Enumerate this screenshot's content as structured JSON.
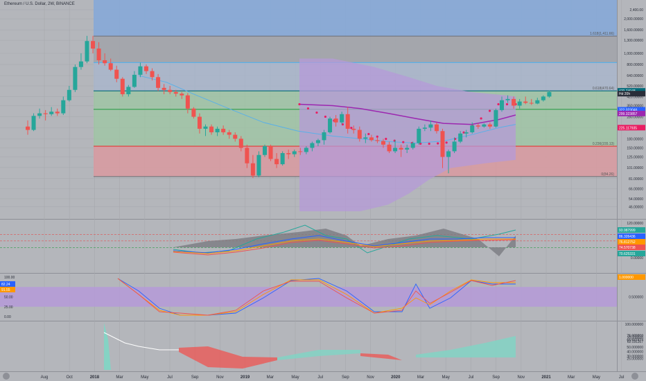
{
  "title": "Ethereum / U.S. Dollar, 2W, BINANCE",
  "colors": {
    "background": "#b4b6bb",
    "up": "#26a69a",
    "down": "#ef5350",
    "blue_zone": "#86a9d8",
    "red_zone": "#d99aa0",
    "green_zone": "#9ec7a3",
    "purple_cloud": "#b59ad8",
    "ma_purple": "#9c27b0",
    "ma_blue": "#5ab0e8",
    "dots": "#e91e63"
  },
  "chart_data": [
    {
      "type": "candlestick",
      "name": "price",
      "title": "Ethereum / U.S. Dollar, 2W, BINANCE",
      "scale": "log",
      "ylim": [
        40,
        3000
      ],
      "x_tick_labels": [
        "Aug",
        "Oct",
        "2018",
        "Mar",
        "May",
        "Jul",
        "Sep",
        "Nov",
        "2019",
        "Mar",
        "May",
        "Jul",
        "Sep",
        "Nov",
        "2020",
        "Mar",
        "May",
        "Jul",
        "Sep",
        "Nov",
        "2021",
        "Mar",
        "May",
        "Jul"
      ],
      "y_tick_labels": [
        "2,400.00",
        "2,000.00000",
        "1,600.00000",
        "1,300.00000",
        "1,000.00000",
        "800.00000",
        "640.00000",
        "520.00000",
        "420.00000",
        "350.00000",
        "280.00000",
        "225.00000",
        "180.00000",
        "150.00000",
        "125.00000",
        "101.00000",
        "81.00000",
        "66.00000",
        "54.00000",
        "46.00000"
      ],
      "candles": [
        {
          "o": 230,
          "h": 260,
          "l": 195,
          "c": 215
        },
        {
          "o": 215,
          "h": 300,
          "l": 210,
          "c": 285
        },
        {
          "o": 285,
          "h": 330,
          "l": 270,
          "c": 300
        },
        {
          "o": 300,
          "h": 320,
          "l": 260,
          "c": 295
        },
        {
          "o": 295,
          "h": 340,
          "l": 285,
          "c": 310
        },
        {
          "o": 310,
          "h": 330,
          "l": 285,
          "c": 300
        },
        {
          "o": 300,
          "h": 420,
          "l": 290,
          "c": 390
        },
        {
          "o": 390,
          "h": 520,
          "l": 380,
          "c": 480
        },
        {
          "o": 480,
          "h": 800,
          "l": 460,
          "c": 760
        },
        {
          "o": 760,
          "h": 1000,
          "l": 720,
          "c": 850
        },
        {
          "o": 850,
          "h": 1420,
          "l": 820,
          "c": 1280
        },
        {
          "o": 1280,
          "h": 1420,
          "l": 1000,
          "c": 1100
        },
        {
          "o": 1100,
          "h": 1250,
          "l": 800,
          "c": 870
        },
        {
          "o": 870,
          "h": 1000,
          "l": 780,
          "c": 820
        },
        {
          "o": 820,
          "h": 900,
          "l": 700,
          "c": 720
        },
        {
          "o": 720,
          "h": 780,
          "l": 560,
          "c": 600
        },
        {
          "o": 600,
          "h": 620,
          "l": 420,
          "c": 440
        },
        {
          "o": 440,
          "h": 530,
          "l": 420,
          "c": 510
        },
        {
          "o": 510,
          "h": 700,
          "l": 500,
          "c": 650
        },
        {
          "o": 650,
          "h": 830,
          "l": 620,
          "c": 770
        },
        {
          "o": 770,
          "h": 800,
          "l": 660,
          "c": 700
        },
        {
          "o": 700,
          "h": 740,
          "l": 580,
          "c": 620
        },
        {
          "o": 620,
          "h": 660,
          "l": 470,
          "c": 500
        },
        {
          "o": 500,
          "h": 540,
          "l": 440,
          "c": 480
        },
        {
          "o": 480,
          "h": 520,
          "l": 440,
          "c": 460
        },
        {
          "o": 460,
          "h": 480,
          "l": 420,
          "c": 445
        },
        {
          "o": 445,
          "h": 460,
          "l": 400,
          "c": 430
        },
        {
          "o": 430,
          "h": 450,
          "l": 300,
          "c": 330
        },
        {
          "o": 330,
          "h": 340,
          "l": 270,
          "c": 280
        },
        {
          "o": 280,
          "h": 300,
          "l": 200,
          "c": 220
        },
        {
          "o": 220,
          "h": 240,
          "l": 190,
          "c": 230
        },
        {
          "o": 230,
          "h": 240,
          "l": 195,
          "c": 205
        },
        {
          "o": 205,
          "h": 230,
          "l": 190,
          "c": 220
        },
        {
          "o": 220,
          "h": 235,
          "l": 195,
          "c": 205
        },
        {
          "o": 205,
          "h": 215,
          "l": 180,
          "c": 195
        },
        {
          "o": 195,
          "h": 205,
          "l": 170,
          "c": 180
        },
        {
          "o": 180,
          "h": 190,
          "l": 140,
          "c": 150
        },
        {
          "o": 150,
          "h": 160,
          "l": 100,
          "c": 110
        },
        {
          "o": 110,
          "h": 130,
          "l": 82,
          "c": 86
        },
        {
          "o": 86,
          "h": 140,
          "l": 83,
          "c": 130
        },
        {
          "o": 130,
          "h": 160,
          "l": 125,
          "c": 155
        },
        {
          "o": 155,
          "h": 160,
          "l": 115,
          "c": 120
        },
        {
          "o": 120,
          "h": 135,
          "l": 100,
          "c": 108
        },
        {
          "o": 108,
          "h": 140,
          "l": 105,
          "c": 135
        },
        {
          "o": 135,
          "h": 145,
          "l": 120,
          "c": 132
        },
        {
          "o": 132,
          "h": 145,
          "l": 125,
          "c": 140
        },
        {
          "o": 140,
          "h": 150,
          "l": 130,
          "c": 138
        },
        {
          "o": 138,
          "h": 155,
          "l": 132,
          "c": 150
        },
        {
          "o": 150,
          "h": 170,
          "l": 140,
          "c": 165
        },
        {
          "o": 165,
          "h": 180,
          "l": 155,
          "c": 175
        },
        {
          "o": 175,
          "h": 215,
          "l": 160,
          "c": 205
        },
        {
          "o": 205,
          "h": 280,
          "l": 200,
          "c": 270
        },
        {
          "o": 270,
          "h": 290,
          "l": 230,
          "c": 250
        },
        {
          "o": 250,
          "h": 310,
          "l": 240,
          "c": 295
        },
        {
          "o": 295,
          "h": 340,
          "l": 200,
          "c": 220
        },
        {
          "o": 220,
          "h": 235,
          "l": 200,
          "c": 215
        },
        {
          "o": 215,
          "h": 230,
          "l": 170,
          "c": 180
        },
        {
          "o": 180,
          "h": 200,
          "l": 165,
          "c": 185
        },
        {
          "o": 185,
          "h": 195,
          "l": 170,
          "c": 175
        },
        {
          "o": 175,
          "h": 185,
          "l": 165,
          "c": 172
        },
        {
          "o": 172,
          "h": 180,
          "l": 150,
          "c": 160
        },
        {
          "o": 160,
          "h": 170,
          "l": 135,
          "c": 140
        },
        {
          "o": 140,
          "h": 175,
          "l": 135,
          "c": 150
        },
        {
          "o": 150,
          "h": 160,
          "l": 125,
          "c": 145
        },
        {
          "o": 145,
          "h": 160,
          "l": 135,
          "c": 150
        },
        {
          "o": 150,
          "h": 170,
          "l": 145,
          "c": 165
        },
        {
          "o": 165,
          "h": 230,
          "l": 160,
          "c": 220
        },
        {
          "o": 220,
          "h": 240,
          "l": 210,
          "c": 225
        },
        {
          "o": 225,
          "h": 260,
          "l": 210,
          "c": 240
        },
        {
          "o": 240,
          "h": 250,
          "l": 200,
          "c": 210
        },
        {
          "o": 210,
          "h": 220,
          "l": 100,
          "c": 125
        },
        {
          "o": 125,
          "h": 145,
          "l": 90,
          "c": 140
        },
        {
          "o": 140,
          "h": 185,
          "l": 135,
          "c": 170
        },
        {
          "o": 170,
          "h": 210,
          "l": 165,
          "c": 200
        },
        {
          "o": 200,
          "h": 215,
          "l": 185,
          "c": 205
        },
        {
          "o": 205,
          "h": 250,
          "l": 200,
          "c": 235
        },
        {
          "o": 235,
          "h": 245,
          "l": 220,
          "c": 230
        },
        {
          "o": 230,
          "h": 245,
          "l": 225,
          "c": 240
        },
        {
          "o": 240,
          "h": 250,
          "l": 220,
          "c": 230
        },
        {
          "o": 230,
          "h": 330,
          "l": 225,
          "c": 320
        },
        {
          "o": 320,
          "h": 420,
          "l": 310,
          "c": 390
        },
        {
          "o": 390,
          "h": 430,
          "l": 370,
          "c": 400
        },
        {
          "o": 400,
          "h": 420,
          "l": 330,
          "c": 350
        },
        {
          "o": 350,
          "h": 400,
          "l": 330,
          "c": 380
        },
        {
          "o": 380,
          "h": 420,
          "l": 360,
          "c": 370
        },
        {
          "o": 370,
          "h": 400,
          "l": 355,
          "c": 365
        },
        {
          "o": 365,
          "h": 410,
          "l": 360,
          "c": 390
        },
        {
          "o": 390,
          "h": 430,
          "l": 380,
          "c": 420
        },
        {
          "o": 420,
          "h": 475,
          "l": 410,
          "c": 460
        }
      ],
      "fib_levels": [
        {
          "label": "1.618(1,411.66)",
          "price": 1411.66
        },
        {
          "label": "0.618(470.64)",
          "price": 470.64
        },
        {
          "label": "0.236(155.13)",
          "price": 155.13
        },
        {
          "label": "0(84.26)",
          "price": 84.26
        }
      ],
      "horizontal_lines": [
        {
          "price": 470.7,
          "color": "#006978"
        },
        {
          "price": 325,
          "color": "#2e9e4a"
        },
        {
          "price": 155,
          "color": "#e53935"
        },
        {
          "price": 830,
          "color": "#5ab0e8"
        }
      ],
      "price_labels": [
        {
          "text": "470.74048",
          "color": "#006978"
        },
        {
          "text": "Hd 20h",
          "color": "#2a2e39"
        },
        {
          "text": "322.023046",
          "color": "#2962ff"
        },
        {
          "text": "299.323857",
          "color": "#9c27b0"
        },
        {
          "text": "225.117935",
          "color": "#e91e63"
        }
      ]
    },
    {
      "type": "line",
      "name": "oscillator-1",
      "y_tick_labels": [
        "120.00000",
        "0.00000"
      ],
      "value_labels": [
        {
          "text": "93.987999",
          "color": "#26a69a"
        },
        {
          "text": "86.326436",
          "color": "#2962ff"
        },
        {
          "text": "76.812752",
          "color": "#ff9800"
        },
        {
          "text": "74.570738",
          "color": "#ef5350"
        },
        {
          "text": "70.625331",
          "color": "#26a69a"
        }
      ]
    },
    {
      "type": "line",
      "name": "stochastic",
      "y_tick_labels": [
        "100.00",
        "75.00",
        "50.00",
        "25.00",
        "0.00"
      ],
      "right_tick_labels": [
        "1.000000",
        "0.500000"
      ],
      "value_labels_left": [
        {
          "text": "82.24",
          "color": "#2962ff"
        },
        {
          "text": "91.55",
          "color": "#ff9800"
        }
      ],
      "value_labels_right": [
        {
          "text": "1.000000",
          "color": "#ff9800"
        }
      ]
    },
    {
      "type": "area",
      "name": "histogram",
      "y_tick_labels": [
        "100.000000",
        "75.000000",
        "74.972702",
        "70.000000",
        "65.547474",
        "62.191167",
        "50.000000",
        "40.000000",
        "30.000000",
        "25.000000"
      ]
    }
  ]
}
